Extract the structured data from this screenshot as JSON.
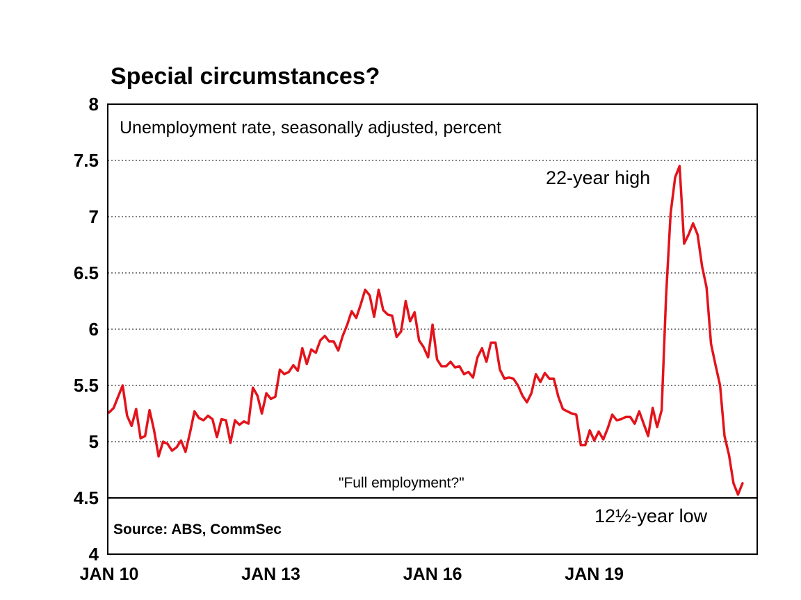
{
  "chart_data": {
    "type": "line",
    "title": "Special circumstances?",
    "subtitle": "Unemployment rate, seasonally adjusted, percent",
    "source": "Source: ABS, CommSec",
    "ylim": [
      4,
      8
    ],
    "y_ticks": [
      "4",
      "4.5",
      "5",
      "5.5",
      "6",
      "6.5",
      "7",
      "7.5",
      "8"
    ],
    "x_ticks": [
      "JAN 10",
      "JAN 13",
      "JAN 16",
      "JAN 19"
    ],
    "grid": "horizontal dotted",
    "reference_line": 4.5,
    "annotations": [
      {
        "text": "22-year high"
      },
      {
        "text": "\"Full employment?\""
      },
      {
        "text": "12½-year low"
      }
    ],
    "line_color": "#e3131b",
    "series": [
      {
        "start": "2010-01",
        "frequency": "monthly",
        "values": [
          5.26,
          5.3,
          5.4,
          5.5,
          5.23,
          5.14,
          5.29,
          5.03,
          5.05,
          5.28,
          5.1,
          4.87,
          5.0,
          4.98,
          4.92,
          4.95,
          5.01,
          4.91,
          5.08,
          5.27,
          5.21,
          5.19,
          5.23,
          5.2,
          5.04,
          5.2,
          5.19,
          4.99,
          5.19,
          5.15,
          5.18,
          5.16,
          5.48,
          5.41,
          5.25,
          5.43,
          5.38,
          5.4,
          5.64,
          5.6,
          5.62,
          5.68,
          5.63,
          5.83,
          5.69,
          5.82,
          5.79,
          5.9,
          5.94,
          5.89,
          5.89,
          5.81,
          5.94,
          6.04,
          6.16,
          6.1,
          6.22,
          6.35,
          6.3,
          6.11,
          6.35,
          6.17,
          6.13,
          6.12,
          5.93,
          5.98,
          6.25,
          6.07,
          6.15,
          5.9,
          5.84,
          5.75,
          6.04,
          5.73,
          5.67,
          5.67,
          5.71,
          5.66,
          5.67,
          5.6,
          5.62,
          5.57,
          5.75,
          5.83,
          5.71,
          5.88,
          5.88,
          5.64,
          5.56,
          5.57,
          5.56,
          5.5,
          5.41,
          5.35,
          5.43,
          5.6,
          5.53,
          5.61,
          5.56,
          5.56,
          5.4,
          5.29,
          5.27,
          5.25,
          5.24,
          4.97,
          4.97,
          5.1,
          5.01,
          5.09,
          5.02,
          5.12,
          5.24,
          5.19,
          5.2,
          5.22,
          5.22,
          5.16,
          5.27,
          5.16,
          5.05,
          5.3,
          5.13,
          5.28,
          6.3,
          7.03,
          7.35,
          7.45,
          6.76,
          6.84,
          6.94,
          6.84,
          6.56,
          6.37,
          5.87,
          5.68,
          5.5,
          5.05,
          4.88,
          4.63,
          4.53,
          4.63
        ]
      }
    ]
  }
}
